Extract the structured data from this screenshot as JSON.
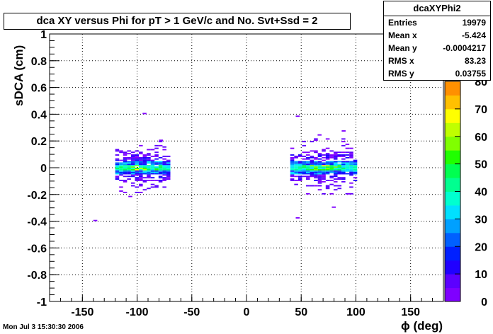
{
  "title": "dca XY versus Phi for pT > 1 GeV/c and No. Svt+Ssd = 2",
  "stats": {
    "name": "dcaXYPhi2",
    "rows": [
      {
        "label": "Entries",
        "value": "19979"
      },
      {
        "label": "Mean x",
        "value": "-5.424"
      },
      {
        "label": "Mean y",
        "value": "-0.0004217"
      },
      {
        "label": "RMS x",
        "value": "83.23"
      },
      {
        "label": "RMS y",
        "value": "0.03755"
      }
    ]
  },
  "footer": "Mon Jul  3 15:30:30 2006",
  "chart_data": {
    "type": "heatmap",
    "title": "dca XY versus Phi for pT > 1 GeV/c and No. Svt+Ssd = 2",
    "xlabel": "ϕ (deg)",
    "ylabel": "sDCA (cm)",
    "xlim": [
      -180,
      180
    ],
    "ylim": [
      -1,
      1
    ],
    "x_ticks": [
      "-150",
      "-100",
      "-50",
      "0",
      "50",
      "100",
      "150"
    ],
    "y_ticks": [
      "-1",
      "-0.8",
      "-0.6",
      "-0.4",
      "-0.2",
      "0",
      "0.2",
      "0.4",
      "0.6",
      "0.8",
      "1"
    ],
    "grid": true,
    "colorbar": {
      "range": [
        0,
        80
      ],
      "ticks": [
        "0",
        "10",
        "20",
        "30",
        "40",
        "50",
        "60",
        "70",
        "80"
      ],
      "colors": [
        "#7f00ff",
        "#5c00ff",
        "#2000ff",
        "#0020ff",
        "#0060ff",
        "#00a0ff",
        "#00e0ff",
        "#00ffd0",
        "#00ff90",
        "#00ff50",
        "#20ff00",
        "#80ff00",
        "#c0ff00",
        "#ffff00",
        "#ffc000",
        "#ff9000"
      ]
    },
    "clusters": [
      {
        "x_range": [
          -120,
          -70
        ],
        "y_range": [
          -0.2,
          0.2
        ],
        "core_y": [
          -0.05,
          0.05
        ],
        "peak_x": -100
      },
      {
        "x_range": [
          40,
          100
        ],
        "y_range": [
          -0.2,
          0.22
        ],
        "core_y": [
          -0.05,
          0.05
        ],
        "peak_x": 70
      }
    ]
  }
}
